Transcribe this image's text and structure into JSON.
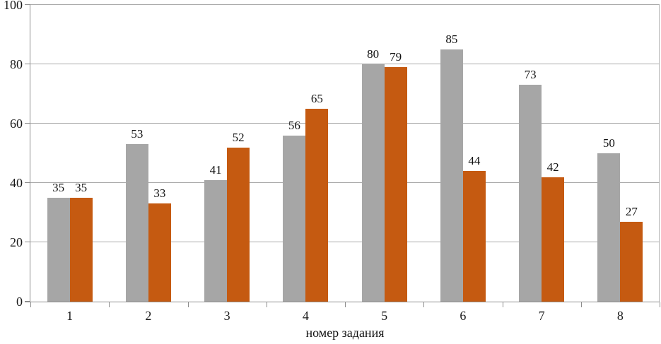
{
  "chart_data": {
    "type": "bar",
    "title": "",
    "xlabel": "номер задания",
    "ylabel": "",
    "categories": [
      "1",
      "2",
      "3",
      "4",
      "5",
      "6",
      "7",
      "8"
    ],
    "series": [
      {
        "name": "series-gray",
        "color": "#a6a6a6",
        "values": [
          35,
          53,
          41,
          56,
          80,
          85,
          73,
          50
        ]
      },
      {
        "name": "series-orange",
        "color": "#c55a11",
        "values": [
          35,
          33,
          52,
          65,
          79,
          44,
          42,
          27
        ]
      }
    ],
    "ylim": [
      0,
      100
    ],
    "yticks": [
      0,
      20,
      40,
      60,
      80,
      100
    ],
    "grid": true,
    "legend_position": "none",
    "value_labels_shown": true
  },
  "colors": {
    "axis": "#8c8c8c",
    "gridline": "#a9a9a9",
    "background": "#ffffff",
    "label_text": "#111111"
  }
}
